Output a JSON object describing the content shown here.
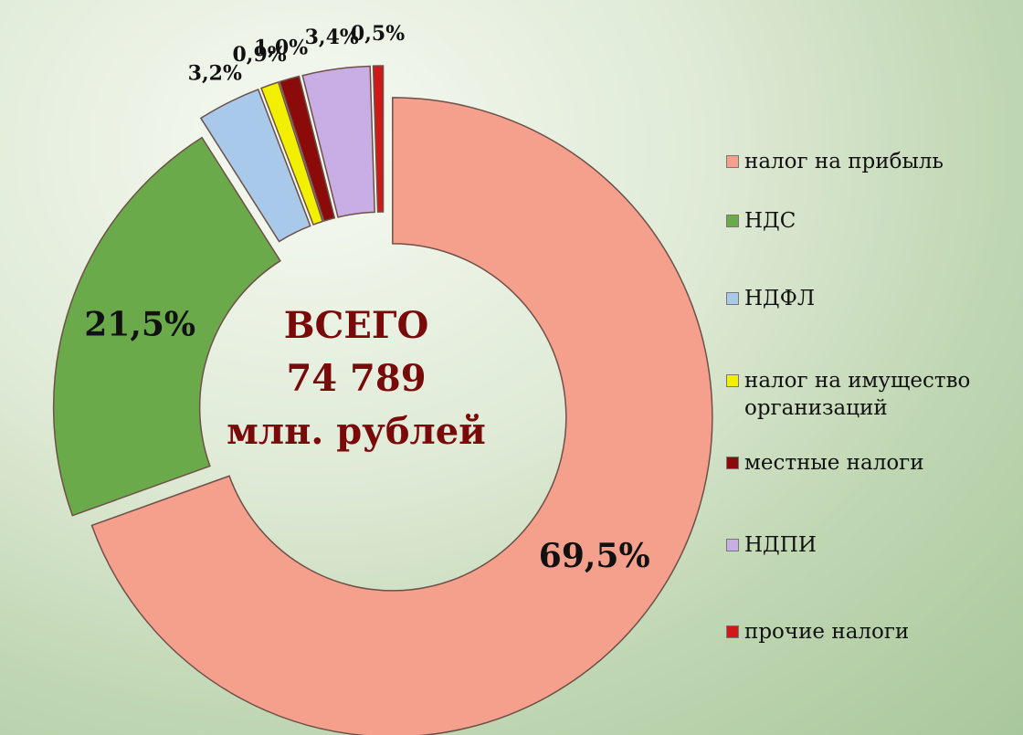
{
  "chart_data": {
    "type": "donut",
    "categories": [
      "налог на прибыль",
      "НДС",
      "НДФЛ",
      "налог на имущество организаций",
      "местные налоги",
      "НДПИ",
      "прочие налоги"
    ],
    "values": [
      69.5,
      21.5,
      3.2,
      0.9,
      1.0,
      3.4,
      0.5
    ],
    "value_labels": [
      "69,5%",
      "21,5%",
      "3,2%",
      "0,9%",
      "1,0%",
      "3,4%",
      "0,5%"
    ],
    "colors": [
      "#f4a08c",
      "#6aaa4a",
      "#a9c9ea",
      "#f2f000",
      "#8b0a0a",
      "#c9aee6",
      "#d01818"
    ],
    "center_text": [
      "ВСЕГО",
      "74 789",
      "млн. рублей"
    ],
    "legend": "right"
  }
}
